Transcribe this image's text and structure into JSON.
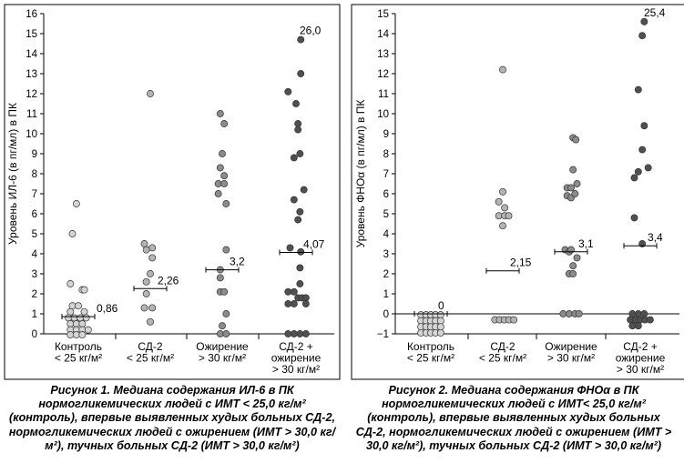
{
  "figures": [
    {
      "caption": {
        "label": "Рисунок 1.",
        "text": "Медиана содержания ИЛ-6 в ПК нормогликемических людей с ИМТ < 25,0 кг/м² (контроль), впервые выявленных худых больных СД-2, нормогликемических людей с ожирением (ИМТ > 30,0 кг/м²), тучных больных СД-2 (ИМТ > 30,0 кг/м²)"
      }
    },
    {
      "caption": {
        "label": "Рисунок 2.",
        "text": "Медиана содержания ФНОα в ПК нормогликемических людей с ИМТ< 25,0 кг/м² (контроль), впервые выявленных худых больных СД-2, нормогликемических людей с ожирением (ИМТ > 30,0 кг/м²), тучных больных СД-2 (ИМТ > 30,0 кг/м²)"
      }
    }
  ],
  "colors": {
    "group_fills": [
      "#d4d4d4",
      "#b4b4b4",
      "#8c8c8c",
      "#505050"
    ],
    "point_stroke": "#333333",
    "axis": "#000000",
    "border": "#000000"
  },
  "chart_data": [
    {
      "type": "scatter",
      "title": "",
      "ylabel": "Уровень ИЛ-6 (в пг/мл) в ПК",
      "ylim": [
        0,
        16
      ],
      "yticks": [
        0,
        1,
        2,
        3,
        4,
        5,
        6,
        7,
        8,
        9,
        10,
        11,
        12,
        13,
        14,
        15,
        16
      ],
      "categories": [
        [
          "Контроль",
          "< 25 кг/м²"
        ],
        [
          "СД-2",
          "< 25 кг/м²"
        ],
        [
          "Ожирение",
          "> 30 кг/м²"
        ],
        [
          "СД-2 +",
          "ожирение",
          "> 30 кг/м²"
        ]
      ],
      "medians": [
        0.86,
        2.26,
        3.2,
        4.07
      ],
      "median_labels": [
        "0,86",
        "2,26",
        "3,2",
        "4,07"
      ],
      "annotations": [
        {
          "text": "26,0",
          "group": 3,
          "y": 14.7
        }
      ],
      "series": [
        {
          "points": [
            [
              -0.05,
              6.5
            ],
            [
              -0.15,
              5.0
            ],
            [
              -0.2,
              2.5
            ],
            [
              0.1,
              2.2
            ],
            [
              0.15,
              2.2
            ],
            [
              -0.15,
              1.4
            ],
            [
              0,
              1.4
            ],
            [
              -0.2,
              1.1
            ],
            [
              0.15,
              1.1
            ],
            [
              -0.25,
              0.8
            ],
            [
              -0.1,
              0.8
            ],
            [
              0.05,
              0.8
            ],
            [
              0.2,
              0.8
            ],
            [
              -0.2,
              0.5
            ],
            [
              -0.05,
              0.5
            ],
            [
              0.1,
              0.5
            ],
            [
              -0.2,
              0.2
            ],
            [
              -0.05,
              0.2
            ],
            [
              0.1,
              0.2
            ],
            [
              0.25,
              0.2
            ],
            [
              -0.2,
              -0.05
            ],
            [
              -0.05,
              -0.05
            ],
            [
              0.1,
              -0.05
            ]
          ]
        },
        {
          "points": [
            [
              0,
              12.0
            ],
            [
              -0.15,
              4.5
            ],
            [
              0.05,
              4.3
            ],
            [
              -0.1,
              4.2
            ],
            [
              0.05,
              3.8
            ],
            [
              0,
              3.0
            ],
            [
              -0.1,
              2.6
            ],
            [
              -0.1,
              2.0
            ],
            [
              -0.15,
              1.3
            ],
            [
              0.05,
              1.3
            ],
            [
              0,
              0.6
            ]
          ]
        },
        {
          "points": [
            [
              -0.05,
              11.0
            ],
            [
              0.05,
              10.5
            ],
            [
              0,
              9.0
            ],
            [
              -0.05,
              8.3
            ],
            [
              0.05,
              7.9
            ],
            [
              -0.1,
              7.5
            ],
            [
              0.05,
              7.5
            ],
            [
              -0.1,
              7.0
            ],
            [
              0.1,
              6.5
            ],
            [
              0.1,
              4.2
            ],
            [
              -0.05,
              3.2
            ],
            [
              -0.05,
              2.8
            ],
            [
              -0.05,
              2.1
            ],
            [
              0.05,
              2.1
            ],
            [
              0.1,
              1.0
            ],
            [
              0,
              0.4
            ],
            [
              -0.05,
              0
            ],
            [
              0.1,
              0
            ]
          ]
        },
        {
          "points": [
            [
              0.12,
              14.7
            ],
            [
              0.12,
              13.0
            ],
            [
              -0.2,
              12.1
            ],
            [
              0,
              11.5
            ],
            [
              0.05,
              10.5
            ],
            [
              0.05,
              10.2
            ],
            [
              0.1,
              9.0
            ],
            [
              -0.05,
              8.8
            ],
            [
              0.2,
              7.2
            ],
            [
              -0.05,
              6.7
            ],
            [
              0.1,
              6.1
            ],
            [
              0.05,
              5.7
            ],
            [
              -0.15,
              4.3
            ],
            [
              0.12,
              4.1
            ],
            [
              0.1,
              3.3
            ],
            [
              0.1,
              2.5
            ],
            [
              -0.2,
              2.1
            ],
            [
              -0.05,
              2.1
            ],
            [
              0.05,
              1.8
            ],
            [
              0.15,
              1.8
            ],
            [
              0.25,
              1.8
            ],
            [
              -0.2,
              1.5
            ],
            [
              -0.05,
              1.5
            ],
            [
              0.25,
              1.5
            ],
            [
              -0.2,
              0
            ],
            [
              -0.05,
              0
            ],
            [
              0.1,
              0
            ],
            [
              0.25,
              0
            ]
          ]
        }
      ]
    },
    {
      "type": "scatter",
      "title": "",
      "ylabel": "Уровень ФНОα (в пг/мл) в ПК",
      "ylim": [
        -1,
        15
      ],
      "yticks": [
        -1,
        0,
        1,
        2,
        3,
        4,
        5,
        6,
        7,
        8,
        9,
        10,
        11,
        12,
        13,
        14,
        15
      ],
      "categories": [
        [
          "Контроль",
          "< 25 кг/м²"
        ],
        [
          "СД-2",
          "< 25 кг/м²"
        ],
        [
          "Ожирение",
          "> 30 кг/м²"
        ],
        [
          "СД-2 +",
          "ожирение",
          "> 30 кг/м²"
        ]
      ],
      "medians": [
        0,
        2.15,
        3.1,
        3.4
      ],
      "median_labels": [
        "0",
        "2,15",
        "3,1",
        "3,4"
      ],
      "annotations": [
        {
          "text": "25,4",
          "group": 3,
          "y": 14.6
        }
      ],
      "series": [
        {
          "points": [
            [
              -0.25,
              -0.05
            ],
            [
              -0.12,
              -0.05
            ],
            [
              0,
              -0.05
            ],
            [
              0.12,
              -0.05
            ],
            [
              0.25,
              -0.05
            ],
            [
              -0.25,
              -0.35
            ],
            [
              -0.12,
              -0.35
            ],
            [
              0,
              -0.35
            ],
            [
              0.12,
              -0.35
            ],
            [
              0.25,
              -0.35
            ],
            [
              -0.25,
              -0.65
            ],
            [
              -0.12,
              -0.65
            ],
            [
              0,
              -0.65
            ],
            [
              0.12,
              -0.65
            ],
            [
              0.25,
              -0.65
            ],
            [
              -0.25,
              -0.95
            ],
            [
              -0.12,
              -0.95
            ],
            [
              0,
              -0.95
            ],
            [
              0.12,
              -0.95
            ],
            [
              0.25,
              -0.95
            ]
          ]
        },
        {
          "points": [
            [
              0,
              12.2
            ],
            [
              0,
              6.1
            ],
            [
              -0.1,
              5.6
            ],
            [
              0.05,
              5.3
            ],
            [
              -0.1,
              4.9
            ],
            [
              0.05,
              4.9
            ],
            [
              0.15,
              4.9
            ],
            [
              0,
              4.4
            ],
            [
              -0.2,
              -0.3
            ],
            [
              -0.08,
              -0.3
            ],
            [
              0.04,
              -0.3
            ],
            [
              0.16,
              -0.3
            ],
            [
              0.28,
              -0.3
            ]
          ]
        },
        {
          "points": [
            [
              0.05,
              8.8
            ],
            [
              0.12,
              8.7
            ],
            [
              0.05,
              7.2
            ],
            [
              -0.1,
              6.3
            ],
            [
              0,
              6.3
            ],
            [
              0.15,
              6.5
            ],
            [
              -0.1,
              5.9
            ],
            [
              0,
              5.8
            ],
            [
              0.1,
              6.0
            ],
            [
              -0.15,
              3.2
            ],
            [
              -0.05,
              3.1
            ],
            [
              0,
              3.2
            ],
            [
              0.15,
              2.8
            ],
            [
              0.05,
              2.4
            ],
            [
              -0.05,
              2.0
            ],
            [
              0.05,
              2.0
            ],
            [
              -0.2,
              0
            ],
            [
              -0.05,
              0
            ],
            [
              0.1,
              0
            ],
            [
              0.2,
              0
            ]
          ]
        },
        {
          "points": [
            [
              0.1,
              14.6
            ],
            [
              0.05,
              13.9
            ],
            [
              -0.05,
              11.2
            ],
            [
              0.1,
              9.4
            ],
            [
              0.05,
              8.2
            ],
            [
              -0.05,
              7.1
            ],
            [
              0.2,
              7.3
            ],
            [
              -0.15,
              6.8
            ],
            [
              -0.15,
              4.8
            ],
            [
              0.05,
              3.5
            ],
            [
              -0.2,
              0
            ],
            [
              -0.05,
              0
            ],
            [
              0.1,
              0
            ],
            [
              -0.25,
              -0.3
            ],
            [
              -0.12,
              -0.3
            ],
            [
              0,
              -0.3
            ],
            [
              0.12,
              -0.3
            ],
            [
              0.25,
              -0.3
            ],
            [
              -0.2,
              -0.6
            ],
            [
              -0.05,
              -0.6
            ]
          ]
        }
      ]
    }
  ]
}
